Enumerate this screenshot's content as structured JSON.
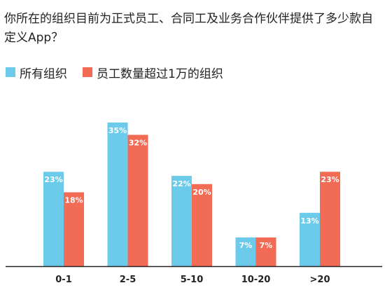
{
  "chart_data": {
    "type": "bar",
    "title": "你所在的组织目前为正式员工、合同工及业务合作伙伴提供了多少款自定义App？",
    "categories": [
      "0-1",
      "2-5",
      "5-10",
      "10-20",
      ">20"
    ],
    "series": [
      {
        "name": "所有组织",
        "color": "#6ccaea",
        "values": [
          23,
          35,
          22,
          7,
          13
        ],
        "labels": [
          "23%",
          "35%",
          "22%",
          "7%",
          "13%"
        ]
      },
      {
        "name": "员工数量超过1万的组织",
        "color": "#f26b54",
        "values": [
          18,
          32,
          20,
          7,
          23
        ],
        "labels": [
          "18%",
          "32%",
          "20%",
          "7%",
          "23%"
        ]
      }
    ],
    "unit": "%",
    "ylim": [
      0,
      36
    ],
    "grid": false,
    "legend_position": "top-left",
    "xlabel": "",
    "ylabel": ""
  }
}
